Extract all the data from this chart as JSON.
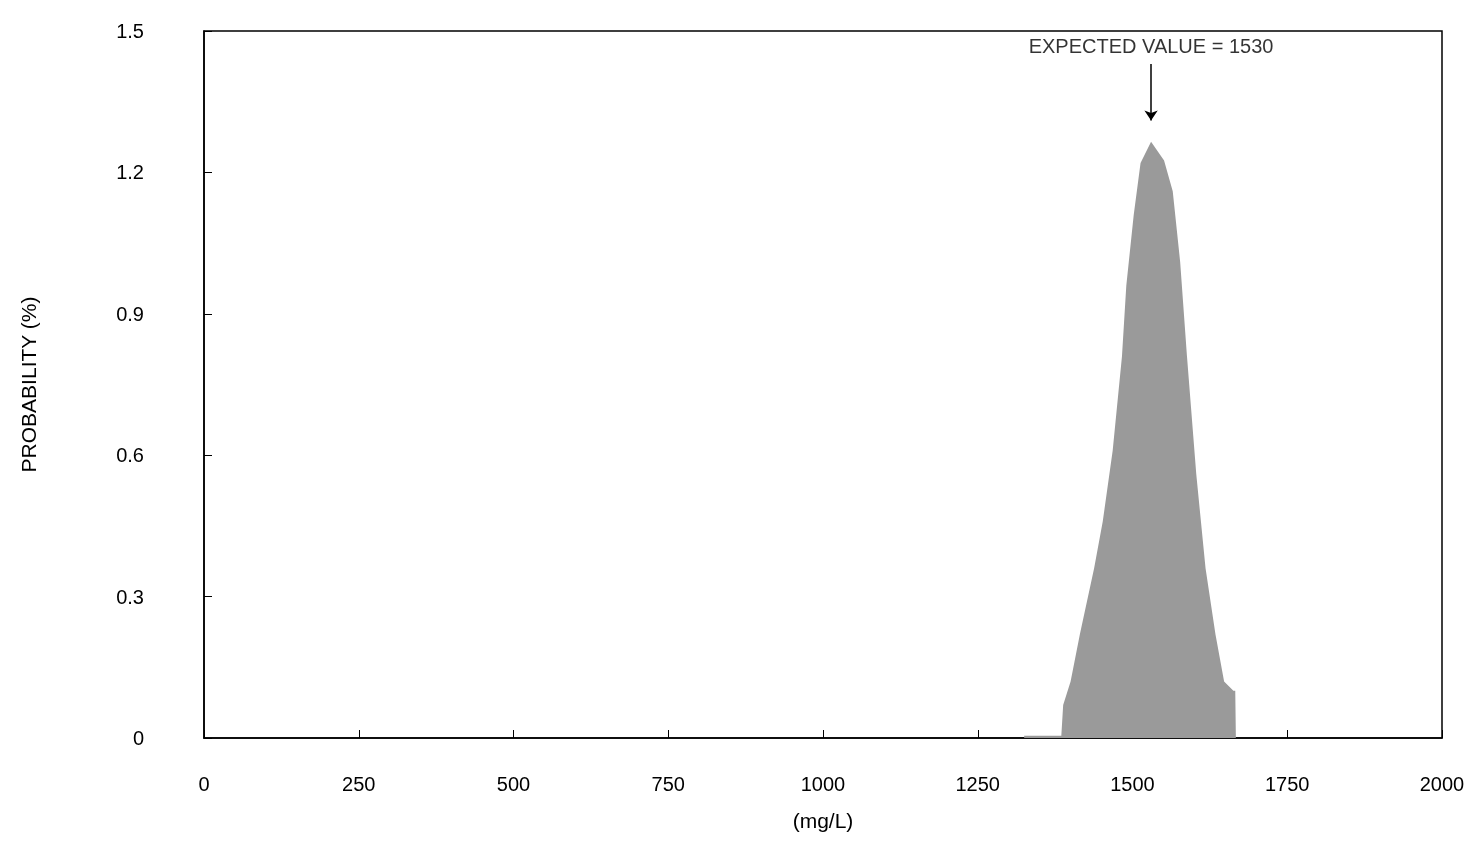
{
  "chart_data": {
    "type": "area",
    "xlabel": "(mg/L)",
    "ylabel": "PROBABILITY (%)",
    "annotations": [
      "EXPECTED VALUE = 1530"
    ],
    "xlim": [
      0,
      2000
    ],
    "xticks": [
      0,
      250,
      500,
      750,
      1000,
      1250,
      1500,
      1750,
      2000
    ],
    "ylim": [
      0,
      1.5
    ],
    "yticks": [
      0,
      0.3,
      0.6,
      0.9,
      1.2,
      1.5
    ],
    "grid": false,
    "marker": "none",
    "series": [
      {
        "color": "#9a9a9a",
        "x": [
          1325,
          1385,
          1388,
          1400,
          1415,
          1438,
          1452,
          1468,
          1483,
          1490,
          1502,
          1513,
          1530,
          1551,
          1565,
          1577,
          1588,
          1603,
          1618,
          1634,
          1648,
          1663,
          1666,
          1667
        ],
        "values": [
          0.005,
          0.005,
          0.07,
          0.12,
          0.22,
          0.36,
          0.46,
          0.61,
          0.81,
          0.96,
          1.11,
          1.22,
          1.265,
          1.225,
          1.16,
          1.01,
          0.81,
          0.56,
          0.36,
          0.22,
          0.12,
          0.1,
          0.1,
          0
        ]
      }
    ]
  }
}
